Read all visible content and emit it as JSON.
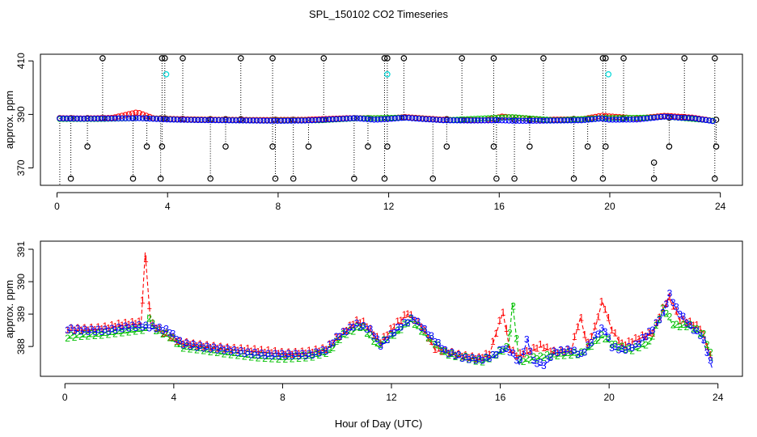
{
  "title": "SPL_150102  CO2 Timeseries",
  "xlabel": "Hour of Day (UTC)",
  "colors": {
    "series1": "#ff0000",
    "series2": "#00c000",
    "series3": "#0000ff",
    "cyan": "#00d8d8",
    "black": "#000000"
  },
  "chart_data": [
    {
      "type": "scatter",
      "name": "top-panel",
      "ylabel": "approx. ppm",
      "xlim": [
        -0.6,
        24.8
      ],
      "ylim": [
        363.5,
        412.5
      ],
      "x_ticks": [
        0,
        4,
        8,
        12,
        16,
        20,
        24
      ],
      "y_ticks": [
        370,
        390,
        410
      ],
      "baseline_series": [
        {
          "name": "1",
          "color": "#ff0000",
          "points": [
            [
              0.1,
              388.6
            ],
            [
              1.0,
              388.5
            ],
            [
              2.0,
              388.7
            ],
            [
              2.9,
              390.8
            ],
            [
              3.5,
              388.5
            ],
            [
              4.5,
              388.2
            ],
            [
              6.0,
              388.0
            ],
            [
              7.5,
              387.9
            ],
            [
              9.0,
              388.0
            ],
            [
              10.5,
              388.6
            ],
            [
              12.0,
              388.6
            ],
            [
              12.6,
              389.0
            ],
            [
              14.0,
              388.0
            ],
            [
              15.5,
              387.8
            ],
            [
              16.1,
              389.2
            ],
            [
              17.5,
              388.0
            ],
            [
              19.0,
              388.2
            ],
            [
              19.7,
              389.5
            ],
            [
              21.0,
              388.5
            ],
            [
              22.0,
              389.5
            ],
            [
              23.0,
              388.8
            ],
            [
              23.8,
              387.5
            ]
          ]
        },
        {
          "name": "2",
          "color": "#00c000",
          "points": [
            [
              0.1,
              388.3
            ],
            [
              1.5,
              388.3
            ],
            [
              3.0,
              388.6
            ],
            [
              4.5,
              388.0
            ],
            [
              7.5,
              387.7
            ],
            [
              9.5,
              387.8
            ],
            [
              10.8,
              388.5
            ],
            [
              12.6,
              388.8
            ],
            [
              14.0,
              387.8
            ],
            [
              16.45,
              389.0
            ],
            [
              18.0,
              387.8
            ],
            [
              19.7,
              388.6
            ],
            [
              21.5,
              388.8
            ],
            [
              22.0,
              389.2
            ],
            [
              23.8,
              387.6
            ]
          ]
        },
        {
          "name": "3",
          "color": "#0000ff",
          "points": [
            [
              0.1,
              388.5
            ],
            [
              1.0,
              388.4
            ],
            [
              2.0,
              388.5
            ],
            [
              3.0,
              388.6
            ],
            [
              4.0,
              388.1
            ],
            [
              5.0,
              387.9
            ],
            [
              6.0,
              387.8
            ],
            [
              7.0,
              387.7
            ],
            [
              8.0,
              387.6
            ],
            [
              9.0,
              387.7
            ],
            [
              10.0,
              388.2
            ],
            [
              10.8,
              388.6
            ],
            [
              11.5,
              388.0
            ],
            [
              12.0,
              388.3
            ],
            [
              12.6,
              388.8
            ],
            [
              13.2,
              388.3
            ],
            [
              14.0,
              387.8
            ],
            [
              15.0,
              387.7
            ],
            [
              16.0,
              387.8
            ],
            [
              16.6,
              387.6
            ],
            [
              17.0,
              387.6
            ],
            [
              18.0,
              387.7
            ],
            [
              19.0,
              387.8
            ],
            [
              19.7,
              388.5
            ],
            [
              20.0,
              388.0
            ],
            [
              21.0,
              388.1
            ],
            [
              22.0,
              389.2
            ],
            [
              22.5,
              388.8
            ],
            [
              23.0,
              388.6
            ],
            [
              23.8,
              387.4
            ]
          ]
        }
      ],
      "calibration_events": [
        {
          "x": 0.1,
          "peak": 388.6,
          "low": 363.5
        },
        {
          "x": 0.5,
          "peak": 388.6,
          "low": 366.0
        },
        {
          "x": 1.1,
          "peak": 388.6,
          "low": 378.0
        },
        {
          "x": 1.65,
          "peak": 411.0,
          "low": 388.6
        },
        {
          "x": 2.75,
          "peak": 388.6,
          "low": 366.0
        },
        {
          "x": 3.25,
          "peak": 388.6,
          "low": 378.0
        },
        {
          "x": 3.75,
          "peak": 388.5,
          "low": 366.0
        },
        {
          "x": 3.8,
          "peak": 411.0,
          "low": 378.0
        },
        {
          "x": 3.9,
          "peak": 411.0,
          "low": 388.5
        },
        {
          "x": 4.55,
          "peak": 411.0,
          "low": 388.3
        },
        {
          "x": 5.55,
          "peak": 388.2,
          "low": 366.0
        },
        {
          "x": 6.1,
          "peak": 388.2,
          "low": 378.0
        },
        {
          "x": 6.65,
          "peak": 411.0,
          "low": 388.2
        },
        {
          "x": 7.8,
          "peak": 411.0,
          "low": 378.0
        },
        {
          "x": 7.9,
          "peak": 388.0,
          "low": 366.0
        },
        {
          "x": 8.55,
          "peak": 388.0,
          "low": 366.0
        },
        {
          "x": 9.1,
          "peak": 388.0,
          "low": 378.0
        },
        {
          "x": 9.65,
          "peak": 411.0,
          "low": 388.0
        },
        {
          "x": 10.75,
          "peak": 388.6,
          "low": 366.0
        },
        {
          "x": 11.25,
          "peak": 388.6,
          "low": 378.0
        },
        {
          "x": 11.85,
          "peak": 411.0,
          "low": 366.0
        },
        {
          "x": 11.95,
          "peak": 411.0,
          "low": 378.0
        },
        {
          "x": 12.55,
          "peak": 411.0,
          "low": 388.8
        },
        {
          "x": 13.6,
          "peak": 388.2,
          "low": 366.0
        },
        {
          "x": 14.1,
          "peak": 388.2,
          "low": 378.0
        },
        {
          "x": 14.65,
          "peak": 411.0,
          "low": 388.0
        },
        {
          "x": 15.8,
          "peak": 411.0,
          "low": 378.0
        },
        {
          "x": 15.9,
          "peak": 388.0,
          "low": 366.0
        },
        {
          "x": 16.55,
          "peak": 388.0,
          "low": 366.0
        },
        {
          "x": 17.1,
          "peak": 388.0,
          "low": 378.0
        },
        {
          "x": 17.6,
          "peak": 411.0,
          "low": 388.0
        },
        {
          "x": 18.7,
          "peak": 388.3,
          "low": 366.0
        },
        {
          "x": 19.2,
          "peak": 388.3,
          "low": 378.0
        },
        {
          "x": 19.75,
          "peak": 411.0,
          "low": 366.0
        },
        {
          "x": 19.85,
          "peak": 411.0,
          "low": 378.0
        },
        {
          "x": 20.5,
          "peak": 411.0,
          "low": 388.5
        },
        {
          "x": 21.6,
          "peak": 372.0,
          "low": 366.0
        },
        {
          "x": 22.15,
          "peak": 388.8,
          "low": 378.0
        },
        {
          "x": 22.7,
          "peak": 411.0,
          "low": 389.0
        },
        {
          "x": 23.8,
          "peak": 411.0,
          "low": 366.0
        },
        {
          "x": 23.85,
          "peak": 388.0,
          "low": 378.0
        }
      ],
      "cyan_points": [
        {
          "x": 3.95,
          "y": 405.0
        },
        {
          "x": 11.95,
          "y": 405.0
        },
        {
          "x": 19.95,
          "y": 405.0
        }
      ]
    },
    {
      "type": "line",
      "name": "bottom-panel",
      "ylabel": "approx. ppm",
      "xlim": [
        -0.9,
        24.9
      ],
      "ylim": [
        387.08,
        391.25
      ],
      "x_ticks": [
        0,
        4,
        8,
        12,
        16,
        20,
        24
      ],
      "y_ticks": [
        388,
        389,
        390,
        391
      ],
      "series": [
        {
          "name": "1",
          "color": "#ff0000",
          "points": [
            [
              0.1,
              388.5
            ],
            [
              0.8,
              388.5
            ],
            [
              1.5,
              388.55
            ],
            [
              2.0,
              388.65
            ],
            [
              2.6,
              388.7
            ],
            [
              2.8,
              388.7
            ],
            [
              2.95,
              390.9
            ],
            [
              3.15,
              388.7
            ],
            [
              3.6,
              388.4
            ],
            [
              4.2,
              388.1
            ],
            [
              5.0,
              388.0
            ],
            [
              6.0,
              387.9
            ],
            [
              7.0,
              387.85
            ],
            [
              7.6,
              387.8
            ],
            [
              8.2,
              387.75
            ],
            [
              9.0,
              387.8
            ],
            [
              9.6,
              387.9
            ],
            [
              10.1,
              388.3
            ],
            [
              10.7,
              388.75
            ],
            [
              11.0,
              388.7
            ],
            [
              11.6,
              388.1
            ],
            [
              12.1,
              388.6
            ],
            [
              12.6,
              389.0
            ],
            [
              13.1,
              388.6
            ],
            [
              13.6,
              387.9
            ],
            [
              14.5,
              387.7
            ],
            [
              15.2,
              387.6
            ],
            [
              15.6,
              387.75
            ],
            [
              16.1,
              389.05
            ],
            [
              16.35,
              387.9
            ],
            [
              16.6,
              387.7
            ],
            [
              17.0,
              387.8
            ],
            [
              17.5,
              388.0
            ],
            [
              18.0,
              387.8
            ],
            [
              18.6,
              387.85
            ],
            [
              18.95,
              388.9
            ],
            [
              19.2,
              388.0
            ],
            [
              19.5,
              388.6
            ],
            [
              19.75,
              389.4
            ],
            [
              20.1,
              388.5
            ],
            [
              20.5,
              388.0
            ],
            [
              21.0,
              388.2
            ],
            [
              21.6,
              388.4
            ],
            [
              21.9,
              389.0
            ],
            [
              22.2,
              389.5
            ],
            [
              22.6,
              388.8
            ],
            [
              23.0,
              388.7
            ],
            [
              23.4,
              388.5
            ],
            [
              23.75,
              387.6
            ]
          ]
        },
        {
          "name": "2",
          "color": "#00c000",
          "points": [
            [
              0.1,
              388.25
            ],
            [
              0.6,
              388.3
            ],
            [
              1.5,
              388.35
            ],
            [
              2.4,
              388.45
            ],
            [
              3.0,
              388.5
            ],
            [
              3.05,
              388.95
            ],
            [
              3.3,
              388.5
            ],
            [
              3.8,
              388.3
            ],
            [
              4.3,
              387.95
            ],
            [
              5.2,
              387.85
            ],
            [
              6.0,
              387.75
            ],
            [
              7.0,
              387.65
            ],
            [
              8.0,
              387.6
            ],
            [
              9.0,
              387.65
            ],
            [
              9.7,
              387.8
            ],
            [
              10.2,
              388.3
            ],
            [
              10.9,
              388.6
            ],
            [
              11.5,
              388.0
            ],
            [
              12.2,
              388.4
            ],
            [
              12.7,
              388.8
            ],
            [
              13.3,
              388.3
            ],
            [
              14.0,
              387.75
            ],
            [
              14.8,
              387.6
            ],
            [
              15.3,
              387.5
            ],
            [
              15.8,
              387.7
            ],
            [
              16.3,
              387.95
            ],
            [
              16.45,
              389.35
            ],
            [
              16.7,
              387.5
            ],
            [
              17.2,
              387.6
            ],
            [
              18.0,
              387.7
            ],
            [
              19.0,
              387.75
            ],
            [
              19.75,
              388.3
            ],
            [
              20.2,
              388.0
            ],
            [
              20.8,
              387.85
            ],
            [
              21.5,
              388.1
            ],
            [
              22.0,
              389.15
            ],
            [
              22.4,
              388.6
            ],
            [
              23.0,
              388.6
            ],
            [
              23.5,
              388.3
            ],
            [
              23.8,
              387.55
            ]
          ]
        },
        {
          "name": "3",
          "color": "#0000ff",
          "points": [
            [
              0.1,
              388.5
            ],
            [
              0.8,
              388.45
            ],
            [
              1.5,
              388.45
            ],
            [
              2.2,
              388.55
            ],
            [
              2.8,
              388.6
            ],
            [
              3.3,
              388.55
            ],
            [
              3.8,
              388.45
            ],
            [
              4.3,
              388.05
            ],
            [
              5.0,
              387.95
            ],
            [
              6.0,
              387.85
            ],
            [
              6.8,
              387.75
            ],
            [
              7.5,
              387.7
            ],
            [
              8.1,
              387.7
            ],
            [
              9.0,
              387.7
            ],
            [
              9.6,
              387.85
            ],
            [
              10.0,
              388.25
            ],
            [
              10.7,
              388.65
            ],
            [
              11.2,
              388.5
            ],
            [
              11.6,
              388.0
            ],
            [
              12.2,
              388.5
            ],
            [
              12.8,
              388.85
            ],
            [
              13.3,
              388.4
            ],
            [
              14.0,
              387.8
            ],
            [
              14.7,
              387.6
            ],
            [
              15.3,
              387.55
            ],
            [
              15.7,
              387.65
            ],
            [
              16.1,
              387.9
            ],
            [
              16.4,
              387.8
            ],
            [
              16.7,
              387.45
            ],
            [
              17.0,
              388.2
            ],
            [
              17.2,
              387.5
            ],
            [
              17.6,
              387.4
            ],
            [
              18.0,
              387.8
            ],
            [
              18.6,
              387.85
            ],
            [
              19.0,
              387.7
            ],
            [
              19.5,
              388.3
            ],
            [
              19.8,
              388.55
            ],
            [
              20.1,
              387.95
            ],
            [
              20.5,
              387.85
            ],
            [
              21.0,
              388.0
            ],
            [
              21.6,
              388.5
            ],
            [
              22.0,
              389.0
            ],
            [
              22.2,
              389.6
            ],
            [
              22.5,
              389.1
            ],
            [
              23.0,
              388.55
            ],
            [
              23.4,
              388.3
            ],
            [
              23.8,
              387.3
            ]
          ]
        }
      ]
    }
  ]
}
